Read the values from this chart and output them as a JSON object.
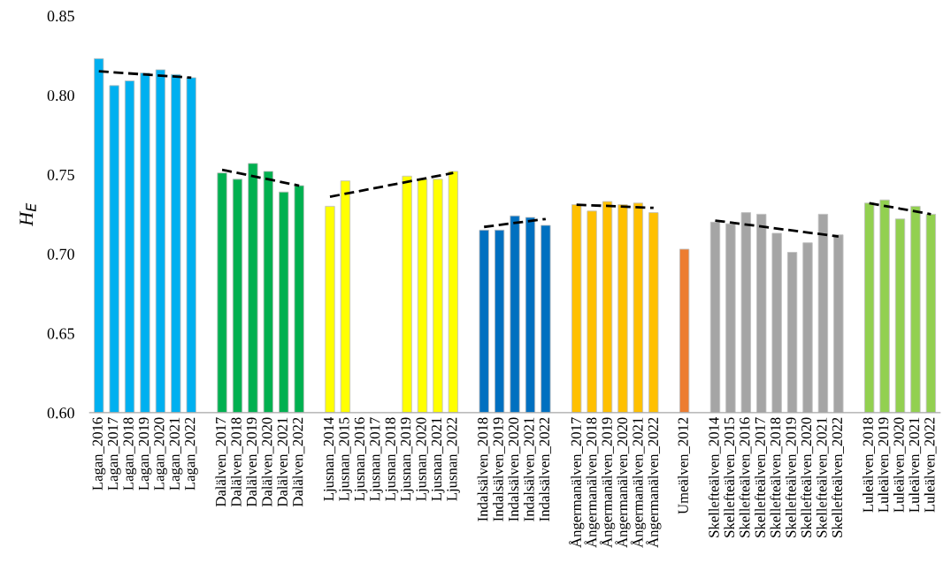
{
  "chart_data": {
    "type": "bar",
    "ylabel": "H$_{E}$",
    "categories": [
      "Lagan_2016",
      "Lagan_2017",
      "Lagan_2018",
      "Lagan_2019",
      "Lagan_2020",
      "Lagan_2021",
      "Lagan_2022",
      null,
      "Dalälven_2017",
      "Dalälven_2018",
      "Dalälven_2019",
      "Dalälven_2020",
      "Dalälven_2021",
      "Dalälven_2022",
      null,
      "Ljusnan_2014",
      "Ljusnan_2015",
      "Ljusnan_2016",
      "Ljusnan_2017",
      "Ljusnan_2018",
      "Ljusnan_2019",
      "Ljusnan_2020",
      "Ljusnan_2021",
      "Ljusnan_2022",
      null,
      "Indalsälven_2018",
      "Indalsälven_2019",
      "Indalsälven_2020",
      "Indalsälven_2021",
      "Indalsälven_2022",
      null,
      "Ångermanälven_2017",
      "Ångermanälven_2018",
      "Ångermanälven_2019",
      "Ångermanälven_2020",
      "Ångermanälven_2021",
      "Ångermanälven_2022",
      null,
      "Umeälven_2012",
      null,
      "Skellefteälven_2014",
      "Skellefteälven_2015",
      "Skellefteälven_2016",
      "Skellefteälven_2017",
      "Skellefteälven_2018",
      "Skellefteälven_2019",
      "Skellefteälven_2020",
      "Skellefteälven_2021",
      "Skellefteälven_2022",
      null,
      "Luleälven_2018",
      "Luleälven_2019",
      "Luleälven_2020",
      "Luleälven_2021",
      "Luleälven_2022"
    ],
    "series": [
      {
        "values": [
          0.823,
          0.806,
          0.809,
          0.814,
          0.816,
          0.813,
          0.811,
          null,
          0.751,
          0.747,
          0.757,
          0.752,
          0.739,
          0.743,
          null,
          0.73,
          0.746,
          null,
          null,
          null,
          0.749,
          0.747,
          0.747,
          0.752,
          null,
          0.715,
          0.715,
          0.724,
          0.723,
          0.718,
          null,
          0.731,
          0.727,
          0.733,
          0.731,
          0.732,
          0.726,
          null,
          0.703,
          null,
          0.72,
          0.719,
          0.726,
          0.725,
          0.713,
          0.701,
          0.707,
          0.725,
          0.712,
          null,
          0.732,
          0.734,
          0.722,
          0.73,
          0.725
        ],
        "colors": [
          "#00b0f0",
          "#00b0f0",
          "#00b0f0",
          "#00b0f0",
          "#00b0f0",
          "#00b0f0",
          "#00b0f0",
          null,
          "#00b050",
          "#00b050",
          "#00b050",
          "#00b050",
          "#00b050",
          "#00b050",
          null,
          "#ffff00",
          "#ffff00",
          "#ffff00",
          "#ffff00",
          "#ffff00",
          "#ffff00",
          "#ffff00",
          "#ffff00",
          "#ffff00",
          null,
          "#0070c0",
          "#0070c0",
          "#0070c0",
          "#0070c0",
          "#0070c0",
          null,
          "#ffc000",
          "#ffc000",
          "#ffc000",
          "#ffc000",
          "#ffc000",
          "#ffc000",
          null,
          "#ed7d31",
          null,
          "#a5a5a5",
          "#a5a5a5",
          "#a5a5a5",
          "#a5a5a5",
          "#a5a5a5",
          "#a5a5a5",
          "#a5a5a5",
          "#a5a5a5",
          "#a5a5a5",
          null,
          "#92d050",
          "#92d050",
          "#92d050",
          "#92d050",
          "#92d050"
        ]
      },
      {
        "type": "line",
        "color": "#000000",
        "line_style": "dashed",
        "x": [
          "Lagan_2016",
          "Lagan_2022"
        ],
        "values": [
          0.815,
          0.811
        ]
      },
      {
        "type": "line",
        "color": "#000000",
        "line_style": "dashed",
        "x": [
          "Dalälven_2017",
          "Dalälven_2022"
        ],
        "values": [
          0.753,
          0.743
        ]
      },
      {
        "type": "line",
        "color": "#000000",
        "line_style": "dashed",
        "x": [
          "Ljusnan_2014",
          "Ljusnan_2022"
        ],
        "values": [
          0.736,
          0.751
        ]
      },
      {
        "type": "line",
        "color": "#000000",
        "line_style": "dashed",
        "x": [
          "Indalsälven_2018",
          "Indalsälven_2022"
        ],
        "values": [
          0.717,
          0.722
        ]
      },
      {
        "type": "line",
        "color": "#000000",
        "line_style": "dashed",
        "x": [
          "Ångermanälven_2017",
          "Ångermanälven_2022"
        ],
        "values": [
          0.731,
          0.729
        ]
      },
      {
        "type": "line",
        "color": "#000000",
        "line_style": "dashed",
        "x": [
          "Skellefteälven_2014",
          "Skellefteälven_2022"
        ],
        "values": [
          0.721,
          0.711
        ]
      },
      {
        "type": "line",
        "color": "#000000",
        "line_style": "dashed",
        "x": [
          "Luleälven_2018",
          "Luleälven_2022"
        ],
        "values": [
          0.732,
          0.725
        ]
      }
    ],
    "ylim": [
      0.6,
      0.85
    ],
    "yticks": [
      {
        "value": 0.6,
        "label": "0.60"
      },
      {
        "value": 0.65,
        "label": "0.65"
      },
      {
        "value": 0.7,
        "label": "0.70"
      },
      {
        "value": 0.75,
        "label": "0.75"
      },
      {
        "value": 0.8,
        "label": "0.80"
      },
      {
        "value": 0.85,
        "label": "0.85"
      }
    ],
    "grid": false,
    "legend": false
  }
}
